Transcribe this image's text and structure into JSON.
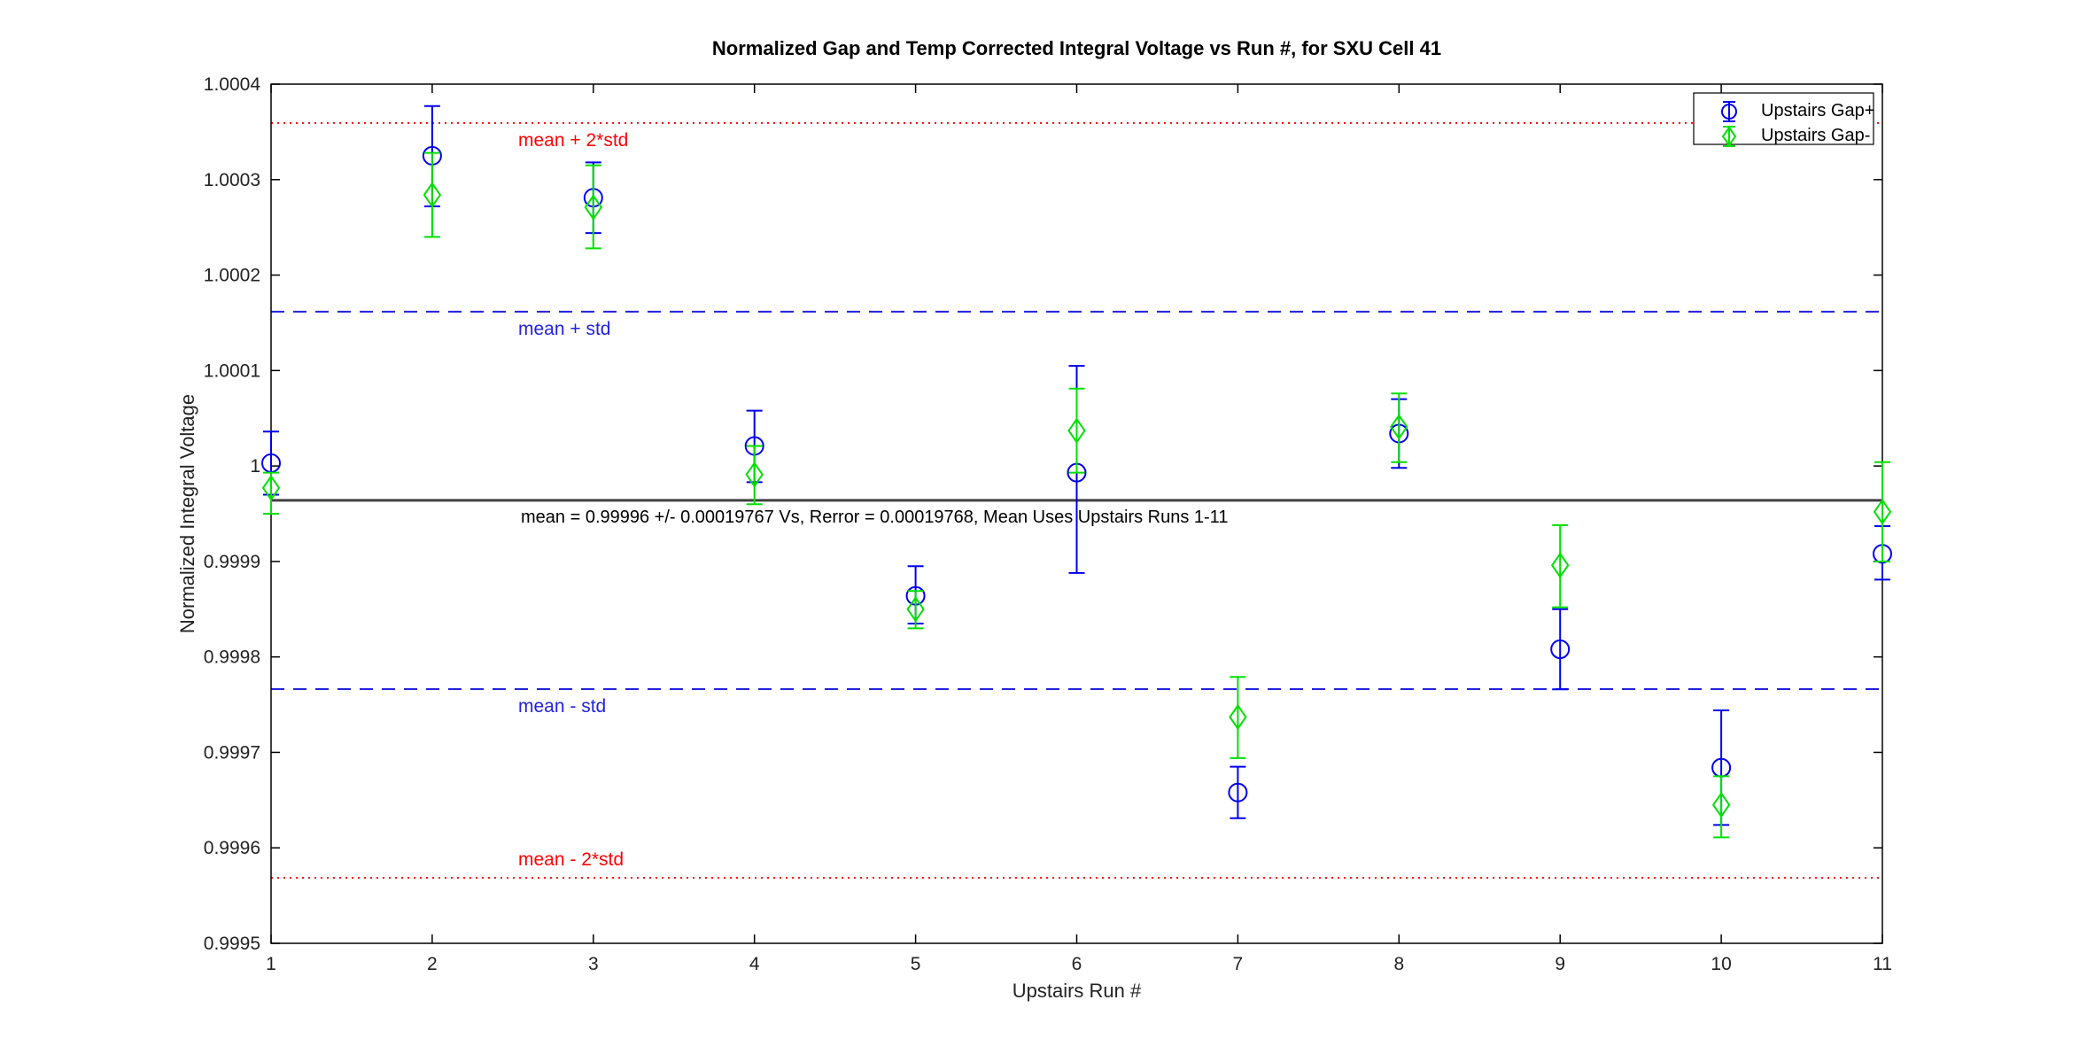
{
  "window": {
    "background": "#ffffff"
  },
  "chart_data": {
    "type": "scatter",
    "title": "Normalized Gap and Temp Corrected Integral Voltage vs Run #, for SXU Cell 41",
    "xlabel": "Upstairs Run #",
    "ylabel": "Normalized Integral Voltage",
    "xlim": [
      1,
      11
    ],
    "ylim": [
      0.9995,
      1.0004
    ],
    "grid": false,
    "x_ticks": [
      1,
      2,
      3,
      4,
      5,
      6,
      7,
      8,
      9,
      10,
      11
    ],
    "y_ticks": [
      {
        "value": 0.9995,
        "label": "0.9995"
      },
      {
        "value": 0.9996,
        "label": "0.9996"
      },
      {
        "value": 0.9997,
        "label": "0.9997"
      },
      {
        "value": 0.9998,
        "label": "0.9998"
      },
      {
        "value": 0.9999,
        "label": "0.9999"
      },
      {
        "value": 1.0,
        "label": "1"
      },
      {
        "value": 1.0001,
        "label": "1.0001"
      },
      {
        "value": 1.0002,
        "label": "1.0002"
      },
      {
        "value": 1.0003,
        "label": "1.0003"
      },
      {
        "value": 1.0004,
        "label": "1.0004"
      }
    ],
    "x": [
      1,
      2,
      3,
      4,
      5,
      6,
      7,
      8,
      9,
      10,
      11
    ],
    "series": [
      {
        "name": "Upstairs Gap+",
        "marker": "circle",
        "color": "#0000ee",
        "values": [
          1.000003,
          1.000325,
          1.000281,
          1.000021,
          0.999864,
          0.999993,
          0.999658,
          1.000034,
          0.999808,
          0.999684,
          0.999908
        ],
        "err_up": [
          3.3e-05,
          5.2e-05,
          3.7e-05,
          3.7e-05,
          3.1e-05,
          0.000112,
          2.7e-05,
          3.6e-05,
          4.2e-05,
          6e-05,
          2.9e-05
        ],
        "err_down": [
          3.3e-05,
          5.3e-05,
          3.7e-05,
          3.8e-05,
          2.9e-05,
          0.000105,
          2.7e-05,
          3.6e-05,
          4.2e-05,
          6e-05,
          2.7e-05
        ]
      },
      {
        "name": "Upstairs Gap-",
        "marker": "diamond",
        "color": "#00e000",
        "values": [
          0.999977,
          1.000284,
          1.000271,
          0.999991,
          0.99985,
          1.000037,
          0.999737,
          1.000041,
          0.999896,
          0.999645,
          0.999952
        ],
        "err_up": [
          1.6e-05,
          4.4e-05,
          4.4e-05,
          3e-05,
          1.9e-05,
          4.4e-05,
          4.2e-05,
          3.5e-05,
          4.2e-05,
          3e-05,
          5.2e-05
        ],
        "err_down": [
          2.7e-05,
          4.4e-05,
          4.3e-05,
          3.1e-05,
          2e-05,
          4.4e-05,
          4.3e-05,
          3.7e-05,
          4.4e-05,
          3.4e-05,
          5.2e-05
        ]
      }
    ],
    "stat_lines": {
      "mean": 0.999964,
      "std": 0.00019767,
      "mean_color": "#404040",
      "std_color": "#2222dd",
      "two_std_color": "#ff0000",
      "annotation": "mean = 0.99996 +/- 0.00019767 Vs, Rerror = 0.00019768, Mean Uses Upstairs Runs 1-11",
      "label_plus_2std": "mean + 2*std",
      "label_plus_std": "mean + std",
      "label_minus_std": "mean - std",
      "label_minus_2std": "mean - 2*std"
    },
    "legend": {
      "position": "top-right",
      "entries": [
        {
          "label": "Upstairs Gap+"
        },
        {
          "label": "Upstairs Gap-"
        }
      ]
    }
  }
}
